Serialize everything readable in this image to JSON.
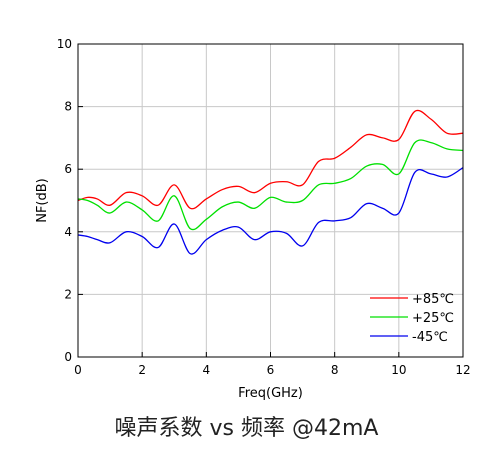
{
  "chart_data": {
    "type": "line",
    "xlabel": "Freq(GHz)",
    "ylabel": "NF(dB)",
    "xlim": [
      0,
      12
    ],
    "ylim": [
      0,
      10
    ],
    "xticks": [
      0,
      2,
      4,
      6,
      8,
      10,
      12
    ],
    "yticks": [
      0,
      2,
      4,
      6,
      8,
      10
    ],
    "grid": true,
    "legend_position": "bottom-right",
    "x": [
      0,
      0.3,
      0.6,
      1.0,
      1.5,
      2.0,
      2.5,
      3.0,
      3.5,
      4.0,
      4.5,
      5.0,
      5.5,
      6.0,
      6.5,
      7.0,
      7.5,
      8.0,
      8.5,
      9.0,
      9.5,
      10.0,
      10.5,
      11.0,
      11.5,
      12.0
    ],
    "series": [
      {
        "name": "+85℃",
        "color": "#ff0000",
        "values": [
          5.0,
          5.1,
          5.05,
          4.85,
          5.25,
          5.15,
          4.85,
          5.5,
          4.75,
          5.05,
          5.35,
          5.45,
          5.25,
          5.55,
          5.6,
          5.5,
          6.25,
          6.35,
          6.7,
          7.1,
          7.0,
          6.95,
          7.85,
          7.6,
          7.15,
          7.15
        ]
      },
      {
        "name": "+25℃",
        "color": "#00e000",
        "values": [
          5.05,
          5.0,
          4.85,
          4.6,
          4.95,
          4.7,
          4.35,
          5.15,
          4.1,
          4.4,
          4.8,
          4.95,
          4.75,
          5.1,
          4.95,
          5.0,
          5.5,
          5.55,
          5.7,
          6.1,
          6.15,
          5.85,
          6.85,
          6.85,
          6.65,
          6.6
        ]
      },
      {
        "name": "-45℃",
        "color": "#0000ee",
        "values": [
          3.9,
          3.85,
          3.75,
          3.65,
          4.0,
          3.85,
          3.5,
          4.25,
          3.3,
          3.75,
          4.05,
          4.15,
          3.75,
          4.0,
          3.95,
          3.55,
          4.3,
          4.35,
          4.45,
          4.9,
          4.75,
          4.6,
          5.9,
          5.85,
          5.75,
          6.05
        ]
      }
    ]
  },
  "caption": "噪声系数 vs 频率 @42mA"
}
